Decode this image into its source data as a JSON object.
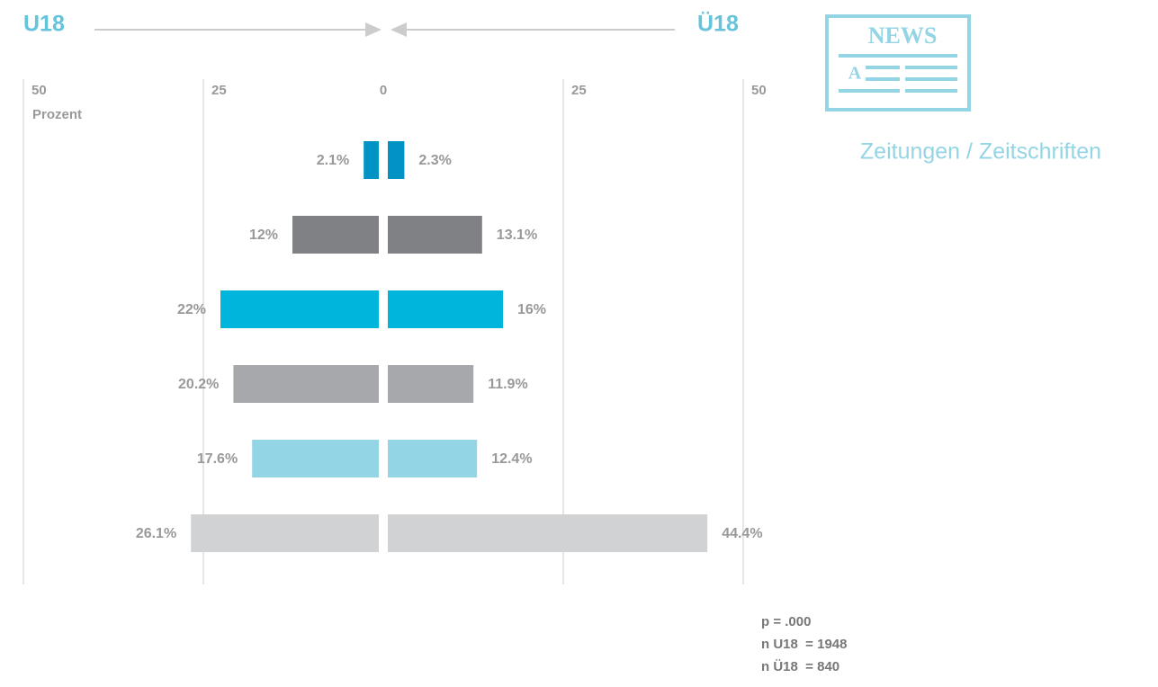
{
  "chart_data": {
    "type": "butterfly",
    "series": [
      {
        "name": "U18",
        "values": [
          2.1,
          12,
          22,
          20.2,
          17.6,
          26.1
        ],
        "value_labels": [
          "2.1%",
          "12%",
          "22%",
          "20.2%",
          "17.6%",
          "26.1%"
        ]
      },
      {
        "name": "Ü18",
        "values": [
          2.3,
          13.1,
          16,
          11.9,
          12.4,
          44.4
        ],
        "value_labels": [
          "2.3%",
          "13.1%",
          "16%",
          "11.9%",
          "12.4%",
          "44.4%"
        ]
      }
    ],
    "colors": [
      "#0093c4",
      "#808184",
      "#00b5dc",
      "#a7a8ab",
      "#93d5e4",
      "#d1d2d4"
    ],
    "xlim": [
      -50,
      50
    ],
    "xticks": [
      {
        "value": -50,
        "label": "50"
      },
      {
        "value": -25,
        "label": "25"
      },
      0,
      25,
      50
    ],
    "xlabel": "Prozent",
    "grid": true,
    "annotations": [
      "p = .000",
      "n U18  = 1948",
      "n Ü18  = 840"
    ]
  },
  "icon": {
    "title": "NEWS",
    "letter": "A",
    "label": "Zeitungen / Zeitschriften"
  }
}
